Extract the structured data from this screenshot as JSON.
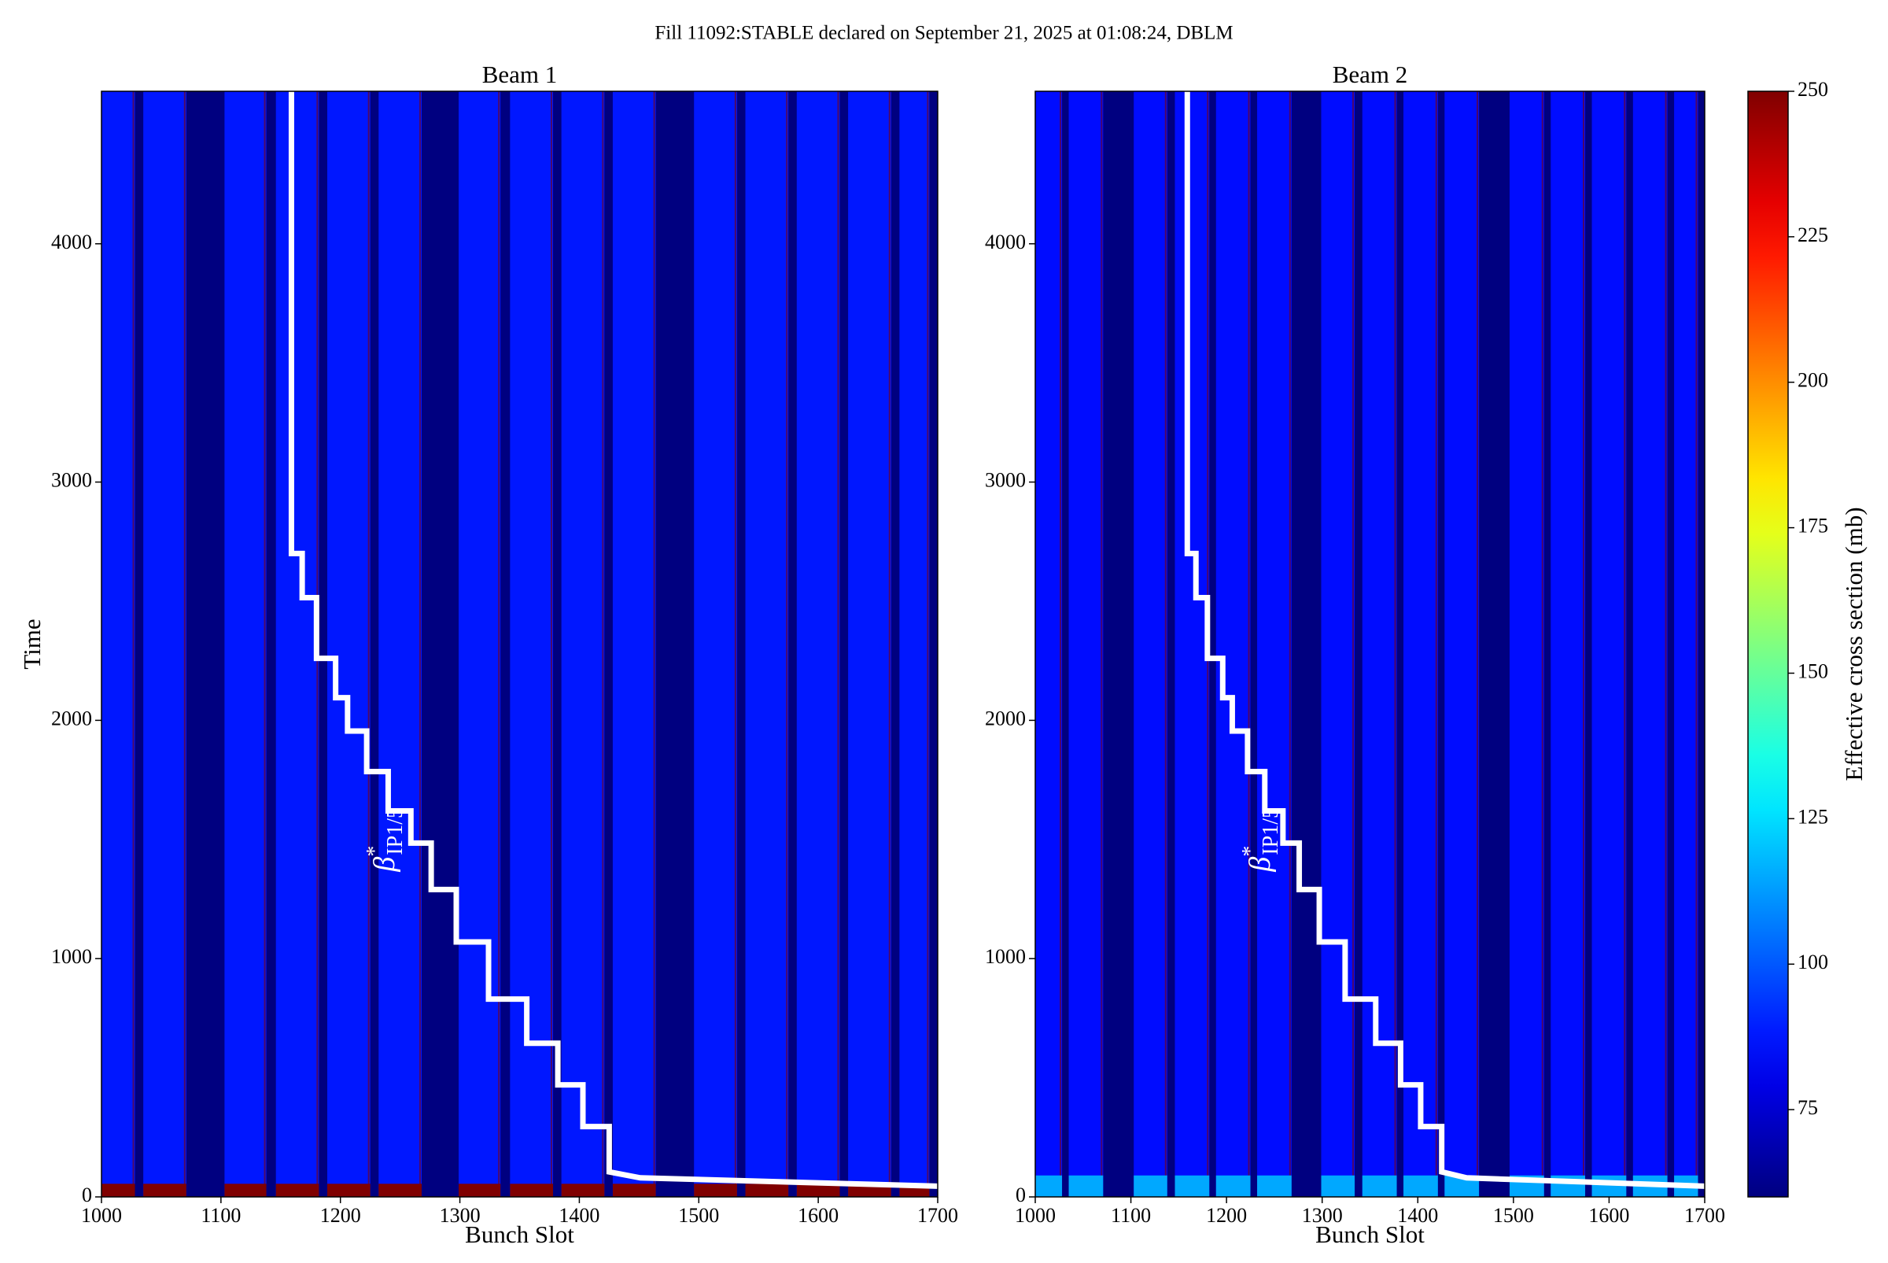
{
  "chart_data": {
    "type": "heatmap",
    "title": "Fill 11092:STABLE declared on September 21, 2025 at 01:08:24, DBLM",
    "colorbar": {
      "label": "Effective cross section (mb)",
      "lim": [
        60,
        250
      ],
      "ticks": [
        75,
        100,
        125,
        150,
        175,
        200,
        225,
        250
      ]
    },
    "panels": [
      {
        "title": "Beam 1",
        "xlabel": "Bunch Slot",
        "ylabel": "Time",
        "xlim": [
          1000,
          1700
        ],
        "xticks": [
          1000,
          1100,
          1200,
          1300,
          1400,
          1500,
          1600,
          1700
        ],
        "ylim": [
          0,
          4640
        ],
        "yticks": [
          0,
          1000,
          2000,
          3000,
          4000
        ],
        "trains": [
          {
            "start": 1000,
            "end": 1028,
            "value": 88
          },
          {
            "start": 1035,
            "end": 1071,
            "value": 88
          },
          {
            "start": 1103,
            "end": 1138,
            "value": 88
          },
          {
            "start": 1146,
            "end": 1182,
            "value": 88
          },
          {
            "start": 1189,
            "end": 1225,
            "value": 88
          },
          {
            "start": 1232,
            "end": 1268,
            "value": 88
          },
          {
            "start": 1299,
            "end": 1334,
            "value": 88
          },
          {
            "start": 1342,
            "end": 1378,
            "value": 88
          },
          {
            "start": 1385,
            "end": 1421,
            "value": 88
          },
          {
            "start": 1428,
            "end": 1464,
            "value": 88
          },
          {
            "start": 1496,
            "end": 1532,
            "value": 88
          },
          {
            "start": 1539,
            "end": 1575,
            "value": 88
          },
          {
            "start": 1582,
            "end": 1618,
            "value": 88
          },
          {
            "start": 1625,
            "end": 1661,
            "value": 88
          },
          {
            "start": 1668,
            "end": 1693,
            "value": 88
          }
        ],
        "early": {
          "ymax": 55,
          "value": 250
        },
        "step": {
          "color": "#ffffff",
          "x": [
            1159,
            1159,
            1168,
            1168,
            1180,
            1180,
            1196,
            1196,
            1206,
            1206,
            1222,
            1222,
            1240,
            1240,
            1259,
            1259,
            1276,
            1276,
            1297,
            1297,
            1324,
            1324,
            1356,
            1356,
            1382,
            1382,
            1403,
            1403,
            1425,
            1425,
            1451,
            1700
          ],
          "y": [
            4640,
            2700,
            2700,
            2515,
            2515,
            2260,
            2260,
            2095,
            2095,
            1955,
            1955,
            1785,
            1785,
            1620,
            1620,
            1485,
            1485,
            1290,
            1290,
            1070,
            1070,
            830,
            830,
            645,
            645,
            470,
            470,
            295,
            295,
            105,
            80,
            45
          ]
        },
        "annotation": {
          "symbol": "β",
          "sup": "*",
          "sub": "IP1/5"
        }
      },
      {
        "title": "Beam 2",
        "xlabel": "Bunch Slot",
        "xlim": [
          1000,
          1700
        ],
        "xticks": [
          1000,
          1100,
          1200,
          1300,
          1400,
          1500,
          1600,
          1700
        ],
        "ylim": [
          0,
          4640
        ],
        "yticks": [
          0,
          1000,
          2000,
          3000,
          4000
        ],
        "trains": [
          {
            "start": 1000,
            "end": 1028,
            "value": 86
          },
          {
            "start": 1035,
            "end": 1071,
            "value": 86
          },
          {
            "start": 1103,
            "end": 1138,
            "value": 86
          },
          {
            "start": 1146,
            "end": 1182,
            "value": 86
          },
          {
            "start": 1189,
            "end": 1225,
            "value": 86
          },
          {
            "start": 1232,
            "end": 1268,
            "value": 86
          },
          {
            "start": 1299,
            "end": 1334,
            "value": 86
          },
          {
            "start": 1342,
            "end": 1378,
            "value": 86
          },
          {
            "start": 1385,
            "end": 1421,
            "value": 86
          },
          {
            "start": 1428,
            "end": 1464,
            "value": 86
          },
          {
            "start": 1496,
            "end": 1532,
            "value": 86
          },
          {
            "start": 1539,
            "end": 1575,
            "value": 86
          },
          {
            "start": 1582,
            "end": 1618,
            "value": 86
          },
          {
            "start": 1625,
            "end": 1661,
            "value": 86
          },
          {
            "start": 1668,
            "end": 1693,
            "value": 86
          }
        ],
        "early": {
          "ymax": 90,
          "value": 115
        },
        "step": {
          "color": "#ffffff",
          "x": [
            1159,
            1159,
            1168,
            1168,
            1180,
            1180,
            1196,
            1196,
            1206,
            1206,
            1222,
            1222,
            1240,
            1240,
            1259,
            1259,
            1276,
            1276,
            1297,
            1297,
            1324,
            1324,
            1356,
            1356,
            1382,
            1382,
            1403,
            1403,
            1425,
            1425,
            1451,
            1700
          ],
          "y": [
            4640,
            2700,
            2700,
            2515,
            2515,
            2260,
            2260,
            2095,
            2095,
            1955,
            1955,
            1785,
            1785,
            1620,
            1620,
            1485,
            1485,
            1290,
            1290,
            1070,
            1070,
            830,
            830,
            645,
            645,
            470,
            470,
            295,
            295,
            105,
            80,
            45
          ]
        },
        "annotation": {
          "symbol": "β",
          "sup": "*",
          "sub": "IP1/5"
        }
      }
    ]
  }
}
